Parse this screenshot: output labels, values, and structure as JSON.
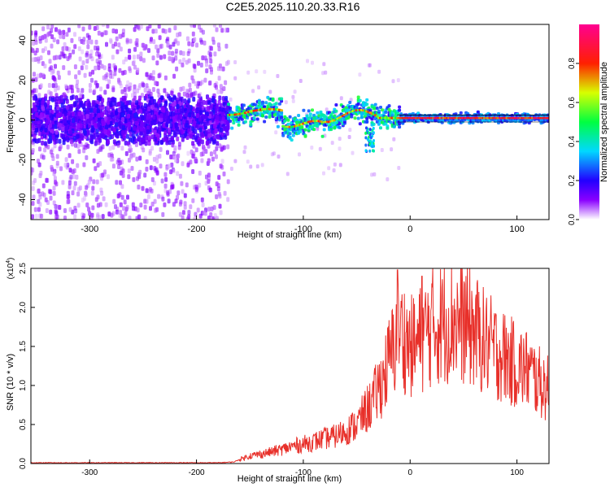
{
  "title": "C2E5.2025.110.20.33.R16",
  "chart_data": [
    {
      "type": "heatmap",
      "xlabel": "Height of straight line (km)",
      "ylabel": "Frequency (Hz)",
      "xlim": [
        -355,
        130
      ],
      "ylim": [
        -50,
        48
      ],
      "x_ticks": [
        "-300",
        "-200",
        "-100",
        "0",
        "100"
      ],
      "y_ticks": [
        "-40",
        "-20",
        "0",
        "20",
        "40"
      ],
      "colorbar": {
        "label": "Normalized spectral amplitude",
        "range": [
          0,
          1
        ],
        "ticks": [
          "0.0",
          "0.2",
          "0.4",
          "0.6",
          "0.8"
        ]
      },
      "grid": false
    },
    {
      "type": "line",
      "xlabel": "Height of straight line (km)",
      "ylabel": "SNR (10 * v/v)",
      "multiplier_label": "(x10",
      "multiplier_exp": "4",
      "xlim": [
        -355,
        130
      ],
      "ylim": [
        0,
        2.5
      ],
      "x_ticks": [
        "-300",
        "-200",
        "-100",
        "0",
        "100"
      ],
      "y_ticks": [
        "0.0",
        "0.5",
        "1.0",
        "1.5",
        "2.0",
        "2.5"
      ],
      "color": "#e8302a",
      "series": [
        {
          "x": [
            -355,
            -300,
            -250,
            -200,
            -180,
            -165,
            -160,
            -150,
            -140,
            -130,
            -120,
            -110,
            -100,
            -90,
            -80,
            -70,
            -60,
            -50,
            -45,
            -40,
            -35,
            -30,
            -25,
            -20,
            -15,
            -12,
            -10,
            -5,
            0,
            5,
            10,
            20,
            30,
            40,
            50,
            60,
            70,
            80,
            90,
            100,
            110,
            120,
            130
          ],
          "y": [
            0.01,
            0.01,
            0.01,
            0.01,
            0.01,
            0.02,
            0.05,
            0.1,
            0.12,
            0.15,
            0.18,
            0.22,
            0.25,
            0.28,
            0.32,
            0.35,
            0.42,
            0.5,
            0.6,
            0.7,
            0.8,
            0.95,
            1.1,
            1.3,
            1.5,
            1.6,
            1.7,
            1.6,
            1.5,
            1.5,
            1.6,
            1.75,
            1.8,
            1.85,
            1.8,
            1.7,
            1.55,
            1.45,
            1.35,
            1.25,
            1.2,
            1.05,
            0.95
          ]
        }
      ]
    }
  ]
}
